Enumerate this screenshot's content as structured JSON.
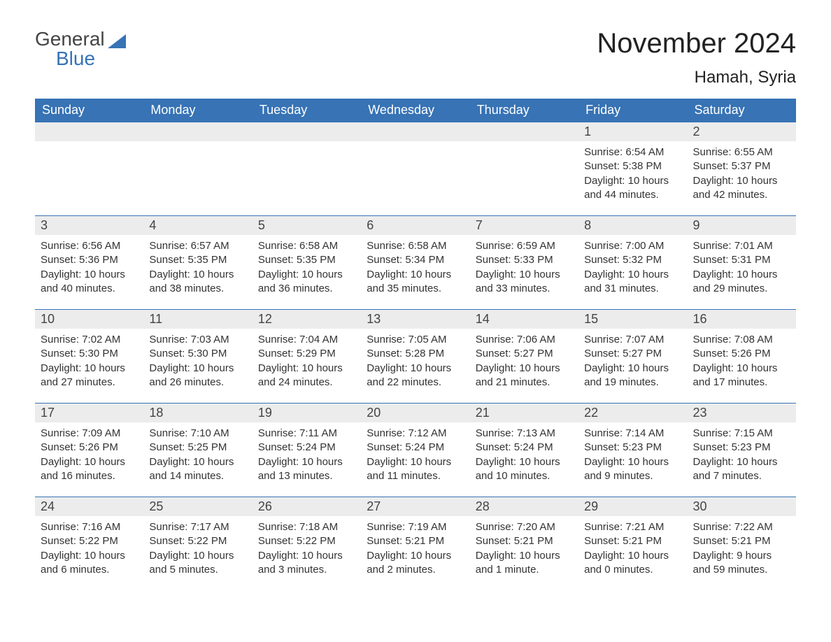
{
  "brand": {
    "word1": "General",
    "word2": "Blue",
    "accent_color": "#3773b5"
  },
  "title": "November 2024",
  "location": "Hamah, Syria",
  "colors": {
    "header_bg": "#3773b5",
    "header_text": "#ffffff",
    "daynum_bg": "#ececec",
    "text": "#333333",
    "page_bg": "#ffffff",
    "rule": "#3773b5"
  },
  "fonts": {
    "base": "Arial",
    "title_size": 40,
    "location_size": 24,
    "header_size": 18,
    "daynum_size": 18,
    "body_size": 15
  },
  "layout": {
    "columns": 7,
    "rows": 5,
    "first_day_column_index": 5
  },
  "weekdays": [
    "Sunday",
    "Monday",
    "Tuesday",
    "Wednesday",
    "Thursday",
    "Friday",
    "Saturday"
  ],
  "days": [
    {
      "n": 1,
      "sunrise": "6:54 AM",
      "sunset": "5:38 PM",
      "daylight": "10 hours and 44 minutes."
    },
    {
      "n": 2,
      "sunrise": "6:55 AM",
      "sunset": "5:37 PM",
      "daylight": "10 hours and 42 minutes."
    },
    {
      "n": 3,
      "sunrise": "6:56 AM",
      "sunset": "5:36 PM",
      "daylight": "10 hours and 40 minutes."
    },
    {
      "n": 4,
      "sunrise": "6:57 AM",
      "sunset": "5:35 PM",
      "daylight": "10 hours and 38 minutes."
    },
    {
      "n": 5,
      "sunrise": "6:58 AM",
      "sunset": "5:35 PM",
      "daylight": "10 hours and 36 minutes."
    },
    {
      "n": 6,
      "sunrise": "6:58 AM",
      "sunset": "5:34 PM",
      "daylight": "10 hours and 35 minutes."
    },
    {
      "n": 7,
      "sunrise": "6:59 AM",
      "sunset": "5:33 PM",
      "daylight": "10 hours and 33 minutes."
    },
    {
      "n": 8,
      "sunrise": "7:00 AM",
      "sunset": "5:32 PM",
      "daylight": "10 hours and 31 minutes."
    },
    {
      "n": 9,
      "sunrise": "7:01 AM",
      "sunset": "5:31 PM",
      "daylight": "10 hours and 29 minutes."
    },
    {
      "n": 10,
      "sunrise": "7:02 AM",
      "sunset": "5:30 PM",
      "daylight": "10 hours and 27 minutes."
    },
    {
      "n": 11,
      "sunrise": "7:03 AM",
      "sunset": "5:30 PM",
      "daylight": "10 hours and 26 minutes."
    },
    {
      "n": 12,
      "sunrise": "7:04 AM",
      "sunset": "5:29 PM",
      "daylight": "10 hours and 24 minutes."
    },
    {
      "n": 13,
      "sunrise": "7:05 AM",
      "sunset": "5:28 PM",
      "daylight": "10 hours and 22 minutes."
    },
    {
      "n": 14,
      "sunrise": "7:06 AM",
      "sunset": "5:27 PM",
      "daylight": "10 hours and 21 minutes."
    },
    {
      "n": 15,
      "sunrise": "7:07 AM",
      "sunset": "5:27 PM",
      "daylight": "10 hours and 19 minutes."
    },
    {
      "n": 16,
      "sunrise": "7:08 AM",
      "sunset": "5:26 PM",
      "daylight": "10 hours and 17 minutes."
    },
    {
      "n": 17,
      "sunrise": "7:09 AM",
      "sunset": "5:26 PM",
      "daylight": "10 hours and 16 minutes."
    },
    {
      "n": 18,
      "sunrise": "7:10 AM",
      "sunset": "5:25 PM",
      "daylight": "10 hours and 14 minutes."
    },
    {
      "n": 19,
      "sunrise": "7:11 AM",
      "sunset": "5:24 PM",
      "daylight": "10 hours and 13 minutes."
    },
    {
      "n": 20,
      "sunrise": "7:12 AM",
      "sunset": "5:24 PM",
      "daylight": "10 hours and 11 minutes."
    },
    {
      "n": 21,
      "sunrise": "7:13 AM",
      "sunset": "5:24 PM",
      "daylight": "10 hours and 10 minutes."
    },
    {
      "n": 22,
      "sunrise": "7:14 AM",
      "sunset": "5:23 PM",
      "daylight": "10 hours and 9 minutes."
    },
    {
      "n": 23,
      "sunrise": "7:15 AM",
      "sunset": "5:23 PM",
      "daylight": "10 hours and 7 minutes."
    },
    {
      "n": 24,
      "sunrise": "7:16 AM",
      "sunset": "5:22 PM",
      "daylight": "10 hours and 6 minutes."
    },
    {
      "n": 25,
      "sunrise": "7:17 AM",
      "sunset": "5:22 PM",
      "daylight": "10 hours and 5 minutes."
    },
    {
      "n": 26,
      "sunrise": "7:18 AM",
      "sunset": "5:22 PM",
      "daylight": "10 hours and 3 minutes."
    },
    {
      "n": 27,
      "sunrise": "7:19 AM",
      "sunset": "5:21 PM",
      "daylight": "10 hours and 2 minutes."
    },
    {
      "n": 28,
      "sunrise": "7:20 AM",
      "sunset": "5:21 PM",
      "daylight": "10 hours and 1 minute."
    },
    {
      "n": 29,
      "sunrise": "7:21 AM",
      "sunset": "5:21 PM",
      "daylight": "10 hours and 0 minutes."
    },
    {
      "n": 30,
      "sunrise": "7:22 AM",
      "sunset": "5:21 PM",
      "daylight": "9 hours and 59 minutes."
    }
  ],
  "labels": {
    "sunrise": "Sunrise:",
    "sunset": "Sunset:",
    "daylight": "Daylight:"
  }
}
